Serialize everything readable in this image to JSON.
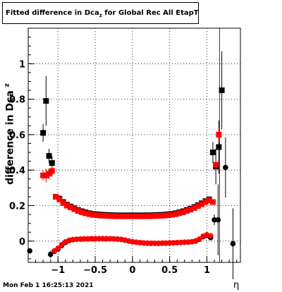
{
  "title": "Fitted difference in Dca",
  "title_sub": "z",
  "title_suffix": " for Global Rec All EtapT",
  "footer": "Mon Feb  1 16:25:13 2021",
  "xlabel": "η",
  "ylabel": "difference in Dca",
  "ylabel_sub": "z",
  "colors": {
    "series_black": "#000000",
    "series_red": "#ff0000",
    "grid": "#000000"
  },
  "chart_data": {
    "type": "scatter",
    "xlim": [
      -1.4,
      1.45
    ],
    "ylim": [
      -0.12,
      1.2
    ],
    "grid": true,
    "xticks": [
      -1,
      -0.5,
      0,
      0.5,
      1
    ],
    "xtick_labels": [
      "−1",
      "−0.5",
      "0",
      "0.5",
      "1"
    ],
    "yticks": [
      0,
      0.2,
      0.4,
      0.6,
      0.8,
      1
    ],
    "ytick_labels": [
      "0",
      "0.2",
      "0.4",
      "0.6",
      "0.8",
      "1"
    ],
    "vline": {
      "x": 1.17,
      "color": "#c00000"
    },
    "series": [
      {
        "marker": "square",
        "color": "#000000",
        "points": [
          {
            "x": -1.2,
            "y": 0.61,
            "err": 0.05
          },
          {
            "x": -1.16,
            "y": 0.79,
            "err": 0.14
          },
          {
            "x": -1.12,
            "y": 0.48,
            "err": 0.04
          },
          {
            "x": -1.08,
            "y": 0.44,
            "err": 0.04
          },
          {
            "x": -1.03,
            "y": 0.25,
            "err": 0.008
          },
          {
            "x": -0.98,
            "y": 0.24,
            "err": 0.006
          },
          {
            "x": -0.93,
            "y": 0.22,
            "err": 0.006
          },
          {
            "x": -0.88,
            "y": 0.205,
            "err": 0.005
          },
          {
            "x": -0.83,
            "y": 0.195,
            "err": 0.005
          },
          {
            "x": -0.78,
            "y": 0.185,
            "err": 0.005
          },
          {
            "x": -0.73,
            "y": 0.175,
            "err": 0.004
          },
          {
            "x": -0.68,
            "y": 0.168,
            "err": 0.004
          },
          {
            "x": -0.63,
            "y": 0.162,
            "err": 0.004
          },
          {
            "x": -0.58,
            "y": 0.157,
            "err": 0.004
          },
          {
            "x": -0.53,
            "y": 0.153,
            "err": 0.004
          },
          {
            "x": -0.48,
            "y": 0.151,
            "err": 0.004
          },
          {
            "x": -0.43,
            "y": 0.149,
            "err": 0.004
          },
          {
            "x": -0.38,
            "y": 0.148,
            "err": 0.004
          },
          {
            "x": -0.33,
            "y": 0.147,
            "err": 0.004
          },
          {
            "x": -0.28,
            "y": 0.146,
            "err": 0.004
          },
          {
            "x": -0.23,
            "y": 0.145,
            "err": 0.004
          },
          {
            "x": -0.18,
            "y": 0.145,
            "err": 0.004
          },
          {
            "x": -0.13,
            "y": 0.145,
            "err": 0.004
          },
          {
            "x": -0.08,
            "y": 0.145,
            "err": 0.004
          },
          {
            "x": -0.03,
            "y": 0.145,
            "err": 0.004
          },
          {
            "x": 0.03,
            "y": 0.145,
            "err": 0.004
          },
          {
            "x": 0.08,
            "y": 0.145,
            "err": 0.004
          },
          {
            "x": 0.13,
            "y": 0.145,
            "err": 0.004
          },
          {
            "x": 0.18,
            "y": 0.145,
            "err": 0.004
          },
          {
            "x": 0.23,
            "y": 0.145,
            "err": 0.004
          },
          {
            "x": 0.28,
            "y": 0.146,
            "err": 0.004
          },
          {
            "x": 0.33,
            "y": 0.147,
            "err": 0.004
          },
          {
            "x": 0.38,
            "y": 0.148,
            "err": 0.004
          },
          {
            "x": 0.43,
            "y": 0.149,
            "err": 0.004
          },
          {
            "x": 0.48,
            "y": 0.151,
            "err": 0.004
          },
          {
            "x": 0.53,
            "y": 0.153,
            "err": 0.004
          },
          {
            "x": 0.58,
            "y": 0.157,
            "err": 0.004
          },
          {
            "x": 0.63,
            "y": 0.162,
            "err": 0.004
          },
          {
            "x": 0.68,
            "y": 0.168,
            "err": 0.004
          },
          {
            "x": 0.73,
            "y": 0.175,
            "err": 0.004
          },
          {
            "x": 0.78,
            "y": 0.183,
            "err": 0.005
          },
          {
            "x": 0.83,
            "y": 0.192,
            "err": 0.005
          },
          {
            "x": 0.88,
            "y": 0.202,
            "err": 0.005
          },
          {
            "x": 0.93,
            "y": 0.213,
            "err": 0.006
          },
          {
            "x": 0.98,
            "y": 0.225,
            "err": 0.006
          },
          {
            "x": 1.03,
            "y": 0.235,
            "err": 0.008
          },
          {
            "x": 1.08,
            "y": 0.5,
            "err": 0.06
          },
          {
            "x": 1.12,
            "y": 0.42,
            "err": 0.1
          },
          {
            "x": 1.16,
            "y": 0.53,
            "err": 0.15
          },
          {
            "x": 1.2,
            "y": 0.85,
            "err": 0.22
          }
        ]
      },
      {
        "marker": "square",
        "color": "#ff0000",
        "points": [
          {
            "x": -1.2,
            "y": 0.37,
            "err": 0.03
          },
          {
            "x": -1.16,
            "y": 0.37,
            "err": 0.04
          },
          {
            "x": -1.12,
            "y": 0.38,
            "err": 0.03
          },
          {
            "x": -1.08,
            "y": 0.395,
            "err": 0.03
          },
          {
            "x": -1.03,
            "y": 0.25,
            "err": 0.008
          },
          {
            "x": -0.98,
            "y": 0.235,
            "err": 0.006
          },
          {
            "x": -0.93,
            "y": 0.215,
            "err": 0.006
          },
          {
            "x": -0.88,
            "y": 0.2,
            "err": 0.005
          },
          {
            "x": -0.83,
            "y": 0.19,
            "err": 0.005
          },
          {
            "x": -0.78,
            "y": 0.18,
            "err": 0.005
          },
          {
            "x": -0.73,
            "y": 0.17,
            "err": 0.004
          },
          {
            "x": -0.68,
            "y": 0.163,
            "err": 0.004
          },
          {
            "x": -0.63,
            "y": 0.157,
            "err": 0.004
          },
          {
            "x": -0.58,
            "y": 0.152,
            "err": 0.004
          },
          {
            "x": -0.53,
            "y": 0.148,
            "err": 0.004
          },
          {
            "x": -0.48,
            "y": 0.146,
            "err": 0.004
          },
          {
            "x": -0.43,
            "y": 0.144,
            "err": 0.004
          },
          {
            "x": -0.38,
            "y": 0.143,
            "err": 0.004
          },
          {
            "x": -0.33,
            "y": 0.142,
            "err": 0.004
          },
          {
            "x": -0.28,
            "y": 0.141,
            "err": 0.004
          },
          {
            "x": -0.23,
            "y": 0.14,
            "err": 0.004
          },
          {
            "x": -0.18,
            "y": 0.14,
            "err": 0.004
          },
          {
            "x": -0.13,
            "y": 0.14,
            "err": 0.004
          },
          {
            "x": -0.08,
            "y": 0.14,
            "err": 0.004
          },
          {
            "x": -0.03,
            "y": 0.14,
            "err": 0.004
          },
          {
            "x": 0.03,
            "y": 0.14,
            "err": 0.004
          },
          {
            "x": 0.08,
            "y": 0.14,
            "err": 0.004
          },
          {
            "x": 0.13,
            "y": 0.14,
            "err": 0.004
          },
          {
            "x": 0.18,
            "y": 0.14,
            "err": 0.004
          },
          {
            "x": 0.23,
            "y": 0.14,
            "err": 0.004
          },
          {
            "x": 0.28,
            "y": 0.141,
            "err": 0.004
          },
          {
            "x": 0.33,
            "y": 0.142,
            "err": 0.004
          },
          {
            "x": 0.38,
            "y": 0.143,
            "err": 0.004
          },
          {
            "x": 0.43,
            "y": 0.144,
            "err": 0.004
          },
          {
            "x": 0.48,
            "y": 0.146,
            "err": 0.004
          },
          {
            "x": 0.53,
            "y": 0.148,
            "err": 0.004
          },
          {
            "x": 0.58,
            "y": 0.152,
            "err": 0.004
          },
          {
            "x": 0.63,
            "y": 0.157,
            "err": 0.004
          },
          {
            "x": 0.68,
            "y": 0.163,
            "err": 0.004
          },
          {
            "x": 0.73,
            "y": 0.17,
            "err": 0.004
          },
          {
            "x": 0.78,
            "y": 0.178,
            "err": 0.005
          },
          {
            "x": 0.83,
            "y": 0.187,
            "err": 0.005
          },
          {
            "x": 0.88,
            "y": 0.197,
            "err": 0.005
          },
          {
            "x": 0.93,
            "y": 0.208,
            "err": 0.006
          },
          {
            "x": 0.98,
            "y": 0.22,
            "err": 0.006
          },
          {
            "x": 1.03,
            "y": 0.23,
            "err": 0.008
          },
          {
            "x": 1.08,
            "y": 0.22,
            "err": 0.015
          },
          {
            "x": 1.12,
            "y": 0.43,
            "err": 0.03
          },
          {
            "x": 1.16,
            "y": 0.6,
            "err": 0.04
          }
        ]
      },
      {
        "marker": "circle",
        "color": "#000000",
        "points": [
          {
            "x": -1.38,
            "y": -0.055,
            "err": 0.0
          },
          {
            "x": -1.1,
            "y": -0.075,
            "err": 0.02
          },
          {
            "x": -1.05,
            "y": -0.058,
            "err": 0.01
          },
          {
            "x": -1.0,
            "y": -0.045,
            "err": 0.008
          },
          {
            "x": -0.95,
            "y": -0.025,
            "err": 0.006
          },
          {
            "x": -0.9,
            "y": -0.008,
            "err": 0.005
          },
          {
            "x": -0.85,
            "y": 0.003,
            "err": 0.005
          },
          {
            "x": -0.8,
            "y": 0.008,
            "err": 0.004
          },
          {
            "x": -0.75,
            "y": 0.01,
            "err": 0.004
          },
          {
            "x": -0.7,
            "y": 0.011,
            "err": 0.004
          },
          {
            "x": -0.65,
            "y": 0.012,
            "err": 0.004
          },
          {
            "x": -0.6,
            "y": 0.012,
            "err": 0.004
          },
          {
            "x": -0.55,
            "y": 0.013,
            "err": 0.004
          },
          {
            "x": -0.5,
            "y": 0.013,
            "err": 0.004
          },
          {
            "x": -0.45,
            "y": 0.013,
            "err": 0.004
          },
          {
            "x": -0.4,
            "y": 0.013,
            "err": 0.004
          },
          {
            "x": -0.35,
            "y": 0.013,
            "err": 0.004
          },
          {
            "x": -0.3,
            "y": 0.013,
            "err": 0.004
          },
          {
            "x": -0.25,
            "y": 0.012,
            "err": 0.004
          },
          {
            "x": -0.2,
            "y": 0.011,
            "err": 0.004
          },
          {
            "x": -0.15,
            "y": 0.009,
            "err": 0.004
          },
          {
            "x": -0.1,
            "y": 0.005,
            "err": 0.004
          },
          {
            "x": -0.05,
            "y": 0.0,
            "err": 0.004
          },
          {
            "x": 0.0,
            "y": -0.004,
            "err": 0.004
          },
          {
            "x": 0.05,
            "y": -0.007,
            "err": 0.004
          },
          {
            "x": 0.1,
            "y": -0.009,
            "err": 0.004
          },
          {
            "x": 0.15,
            "y": -0.011,
            "err": 0.004
          },
          {
            "x": 0.2,
            "y": -0.012,
            "err": 0.004
          },
          {
            "x": 0.25,
            "y": -0.013,
            "err": 0.004
          },
          {
            "x": 0.3,
            "y": -0.013,
            "err": 0.004
          },
          {
            "x": 0.35,
            "y": -0.013,
            "err": 0.004
          },
          {
            "x": 0.4,
            "y": -0.012,
            "err": 0.004
          },
          {
            "x": 0.45,
            "y": -0.012,
            "err": 0.004
          },
          {
            "x": 0.5,
            "y": -0.011,
            "err": 0.004
          },
          {
            "x": 0.55,
            "y": -0.01,
            "err": 0.004
          },
          {
            "x": 0.6,
            "y": -0.009,
            "err": 0.004
          },
          {
            "x": 0.65,
            "y": -0.008,
            "err": 0.004
          },
          {
            "x": 0.7,
            "y": -0.007,
            "err": 0.004
          },
          {
            "x": 0.75,
            "y": -0.006,
            "err": 0.004
          },
          {
            "x": 0.8,
            "y": -0.004,
            "err": 0.005
          },
          {
            "x": 0.85,
            "y": 0.0,
            "err": 0.005
          },
          {
            "x": 0.9,
            "y": 0.01,
            "err": 0.005
          },
          {
            "x": 0.95,
            "y": 0.025,
            "err": 0.006
          },
          {
            "x": 1.0,
            "y": 0.032,
            "err": 0.008
          },
          {
            "x": 1.05,
            "y": 0.02,
            "err": 0.01
          },
          {
            "x": 1.1,
            "y": 0.12,
            "err": 0.03
          },
          {
            "x": 1.15,
            "y": 0.12,
            "err": 0.2
          },
          {
            "x": 1.25,
            "y": 0.415,
            "err": 0.17
          },
          {
            "x": 1.35,
            "y": -0.015,
            "err": 0.2
          }
        ]
      },
      {
        "marker": "circle",
        "color": "#ff0000",
        "points": [
          {
            "x": -1.05,
            "y": -0.055,
            "err": 0.008
          },
          {
            "x": -1.0,
            "y": -0.04,
            "err": 0.008
          },
          {
            "x": -0.95,
            "y": -0.02,
            "err": 0.006
          },
          {
            "x": -0.9,
            "y": -0.004,
            "err": 0.005
          },
          {
            "x": -0.85,
            "y": 0.005,
            "err": 0.005
          },
          {
            "x": -0.8,
            "y": 0.009,
            "err": 0.004
          },
          {
            "x": -0.75,
            "y": 0.011,
            "err": 0.004
          },
          {
            "x": -0.7,
            "y": 0.012,
            "err": 0.004
          },
          {
            "x": -0.65,
            "y": 0.013,
            "err": 0.004
          },
          {
            "x": -0.6,
            "y": 0.013,
            "err": 0.004
          },
          {
            "x": -0.55,
            "y": 0.014,
            "err": 0.004
          },
          {
            "x": -0.5,
            "y": 0.014,
            "err": 0.004
          },
          {
            "x": -0.45,
            "y": 0.014,
            "err": 0.004
          },
          {
            "x": -0.4,
            "y": 0.014,
            "err": 0.004
          },
          {
            "x": -0.35,
            "y": 0.014,
            "err": 0.004
          },
          {
            "x": -0.3,
            "y": 0.014,
            "err": 0.004
          },
          {
            "x": -0.25,
            "y": 0.013,
            "err": 0.004
          },
          {
            "x": -0.2,
            "y": 0.012,
            "err": 0.004
          },
          {
            "x": -0.15,
            "y": 0.01,
            "err": 0.004
          },
          {
            "x": -0.1,
            "y": 0.006,
            "err": 0.004
          },
          {
            "x": -0.05,
            "y": 0.001,
            "err": 0.004
          },
          {
            "x": 0.0,
            "y": -0.003,
            "err": 0.004
          },
          {
            "x": 0.05,
            "y": -0.006,
            "err": 0.004
          },
          {
            "x": 0.1,
            "y": -0.008,
            "err": 0.004
          },
          {
            "x": 0.15,
            "y": -0.01,
            "err": 0.004
          },
          {
            "x": 0.2,
            "y": -0.011,
            "err": 0.004
          },
          {
            "x": 0.25,
            "y": -0.012,
            "err": 0.004
          },
          {
            "x": 0.3,
            "y": -0.012,
            "err": 0.004
          },
          {
            "x": 0.35,
            "y": -0.012,
            "err": 0.004
          },
          {
            "x": 0.4,
            "y": -0.011,
            "err": 0.004
          },
          {
            "x": 0.45,
            "y": -0.011,
            "err": 0.004
          },
          {
            "x": 0.5,
            "y": -0.01,
            "err": 0.004
          },
          {
            "x": 0.55,
            "y": -0.009,
            "err": 0.004
          },
          {
            "x": 0.6,
            "y": -0.008,
            "err": 0.004
          },
          {
            "x": 0.65,
            "y": -0.007,
            "err": 0.004
          },
          {
            "x": 0.7,
            "y": -0.006,
            "err": 0.004
          },
          {
            "x": 0.75,
            "y": -0.005,
            "err": 0.004
          },
          {
            "x": 0.8,
            "y": -0.003,
            "err": 0.005
          },
          {
            "x": 0.85,
            "y": 0.002,
            "err": 0.005
          },
          {
            "x": 0.9,
            "y": 0.012,
            "err": 0.005
          },
          {
            "x": 0.95,
            "y": 0.028,
            "err": 0.006
          },
          {
            "x": 1.0,
            "y": 0.036,
            "err": 0.008
          },
          {
            "x": 1.05,
            "y": 0.03,
            "err": 0.01
          }
        ]
      }
    ]
  }
}
